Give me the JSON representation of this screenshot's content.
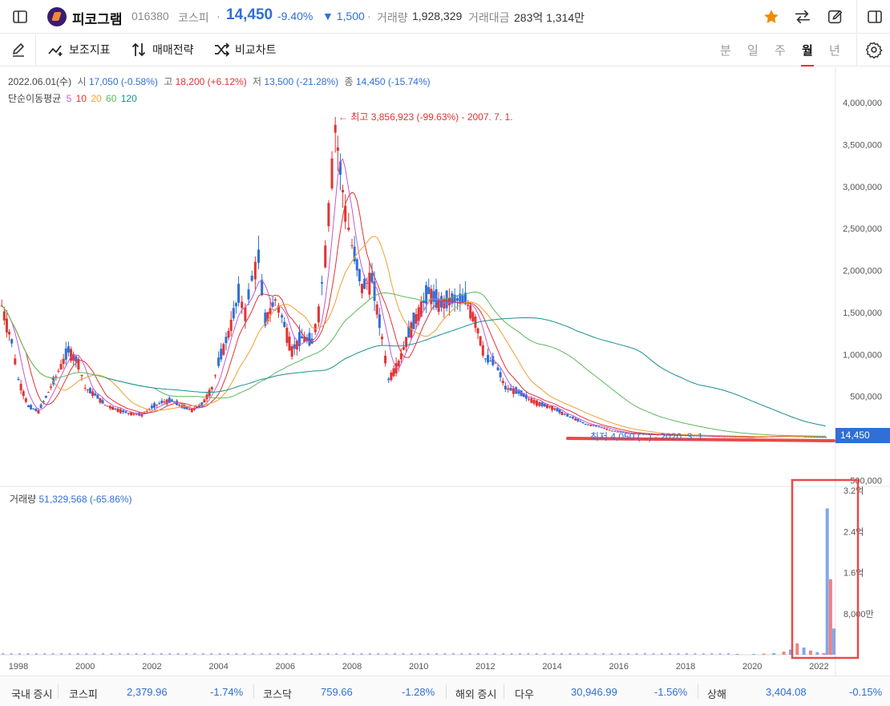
{
  "header": {
    "stock_name": "피코그램",
    "stock_code": "016380",
    "market": "코스피",
    "price": "14,450",
    "change_pct": "-9.40%",
    "change_amt": "▼ 1,500",
    "volume_label": "거래량",
    "volume_value": "1,928,329",
    "trade_amount_label": "거래대금",
    "trade_amount_value": "283억 1,314만"
  },
  "toolbar": {
    "indicators_label": "보조지표",
    "strategy_label": "매매전략",
    "compare_label": "비교차트",
    "periods": [
      "분",
      "일",
      "주",
      "월",
      "년"
    ],
    "active_period": "월"
  },
  "info": {
    "date": "2022.06.01(수)",
    "open_label": "시",
    "open_value": "17,050 (-0.58%)",
    "high_label": "고",
    "high_value": "18,200 (+6.12%)",
    "low_label": "저",
    "low_value": "13,500 (-21.28%)",
    "close_label": "종",
    "close_value": "14,450 (-15.74%)",
    "ma_label": "단순이동평균",
    "ma_periods": [
      "5",
      "10",
      "20",
      "60",
      "120"
    ],
    "max_annotation": "← 최고 3,856,923 (-99.63%) - 2007. 7. 1.",
    "min_annotation": "최저 4,050 (...) - 2020. 3. 1.",
    "current_price_tag": "14,450",
    "volume_label": "거래량",
    "volume_value": "51,329,568 (-65.86%)"
  },
  "colors": {
    "up": "#e03434",
    "down": "#2f6fd6",
    "accent_star": "#f08a00",
    "ma5": "#c15ad6",
    "ma10": "#e03434",
    "ma20": "#f0a030",
    "ma60": "#5cb85c",
    "ma120": "#1a8f8f"
  },
  "chart_data": {
    "type": "line",
    "title": "",
    "xlabel": "",
    "ylabel": "",
    "price_axis_ticks": [
      "4,000,000",
      "3,500,000",
      "3,000,000",
      "2,500,000",
      "2,000,000",
      "1,500,000",
      "1,000,000",
      "500,000",
      "500,000"
    ],
    "volume_axis_ticks": [
      "3.2억",
      "2.4억",
      "1.6억",
      "8,000만"
    ],
    "x_ticks": [
      "1998",
      "2000",
      "2002",
      "2004",
      "2006",
      "2008",
      "2010",
      "2012",
      "2014",
      "2016",
      "2018",
      "2020",
      "2022"
    ],
    "ylim": [
      -500000,
      4200000
    ],
    "series": [
      {
        "name": "5",
        "values": []
      },
      {
        "name": "10",
        "values": []
      },
      {
        "name": "20",
        "values": []
      },
      {
        "name": "60",
        "values": []
      },
      {
        "name": "120",
        "values": []
      }
    ],
    "price_points": [
      [
        1997.5,
        1580000
      ],
      [
        1997.8,
        1150000
      ],
      [
        1998.0,
        700000
      ],
      [
        1998.3,
        380000
      ],
      [
        1998.6,
        320000
      ],
      [
        1998.9,
        550000
      ],
      [
        1999.2,
        800000
      ],
      [
        1999.5,
        1050000
      ],
      [
        1999.8,
        900000
      ],
      [
        2000.0,
        600000
      ],
      [
        2000.3,
        520000
      ],
      [
        2000.6,
        400000
      ],
      [
        2000.9,
        350000
      ],
      [
        2001.3,
        300000
      ],
      [
        2001.7,
        280000
      ],
      [
        2002.0,
        370000
      ],
      [
        2002.3,
        430000
      ],
      [
        2002.6,
        450000
      ],
      [
        2002.9,
        380000
      ],
      [
        2003.2,
        340000
      ],
      [
        2003.5,
        400000
      ],
      [
        2003.8,
        600000
      ],
      [
        2004.0,
        900000
      ],
      [
        2004.3,
        1250000
      ],
      [
        2004.6,
        1700000
      ],
      [
        2004.8,
        1500000
      ],
      [
        2005.0,
        1900000
      ],
      [
        2005.2,
        2150000
      ],
      [
        2005.4,
        1400000
      ],
      [
        2005.7,
        1650000
      ],
      [
        2005.9,
        1450000
      ],
      [
        2006.2,
        1050000
      ],
      [
        2006.5,
        1200000
      ],
      [
        2006.8,
        1150000
      ],
      [
        2007.0,
        1500000
      ],
      [
        2007.2,
        2200000
      ],
      [
        2007.4,
        3200000
      ],
      [
        2007.5,
        3700000
      ],
      [
        2007.8,
        2700000
      ],
      [
        2008.0,
        2300000
      ],
      [
        2008.3,
        1800000
      ],
      [
        2008.6,
        1900000
      ],
      [
        2008.9,
        1200000
      ],
      [
        2009.1,
        700000
      ],
      [
        2009.4,
        900000
      ],
      [
        2009.7,
        1250000
      ],
      [
        2010.0,
        1500000
      ],
      [
        2010.3,
        1750000
      ],
      [
        2010.6,
        1600000
      ],
      [
        2011.0,
        1650000
      ],
      [
        2011.4,
        1650000
      ],
      [
        2011.7,
        1400000
      ],
      [
        2012.0,
        950000
      ],
      [
        2012.3,
        900000
      ],
      [
        2012.6,
        600000
      ],
      [
        2013.0,
        550000
      ],
      [
        2013.3,
        470000
      ],
      [
        2013.7,
        400000
      ],
      [
        2014.0,
        370000
      ],
      [
        2014.3,
        300000
      ],
      [
        2014.7,
        230000
      ],
      [
        2015.0,
        170000
      ],
      [
        2015.4,
        140000
      ],
      [
        2015.8,
        90000
      ],
      [
        2016.3,
        60000
      ],
      [
        2017.0,
        45000
      ],
      [
        2018.0,
        35000
      ],
      [
        2019.0,
        25000
      ],
      [
        2020.0,
        15000
      ],
      [
        2021.0,
        30000
      ],
      [
        2021.6,
        20000
      ],
      [
        2022.2,
        14450
      ]
    ],
    "volume_bars": [
      [
        2019.5,
        0.005
      ],
      [
        2020.0,
        0.01
      ],
      [
        2020.3,
        0.02
      ],
      [
        2020.6,
        0.03
      ],
      [
        2020.9,
        0.06
      ],
      [
        2021.1,
        0.1
      ],
      [
        2021.3,
        0.22
      ],
      [
        2021.5,
        0.14
      ],
      [
        2021.7,
        0.08
      ],
      [
        2021.9,
        0.05
      ],
      [
        2022.1,
        0.03
      ],
      [
        2022.2,
        2.85
      ],
      [
        2022.3,
        1.47
      ],
      [
        2022.4,
        0.51
      ]
    ]
  },
  "status": {
    "domestic_label": "국내 증시",
    "kospi_label": "코스피",
    "kospi_value": "2,379.96",
    "kospi_change": "-1.74%",
    "kosdaq_label": "코스닥",
    "kosdaq_value": "759.66",
    "kosdaq_change": "-1.28%",
    "overseas_label": "해외 증시",
    "dow_label": "다우",
    "dow_value": "30,946.99",
    "dow_change": "-1.56%",
    "shanghai_label": "상해",
    "shanghai_value": "3,404.08",
    "shanghai_change": "-0.15%"
  }
}
